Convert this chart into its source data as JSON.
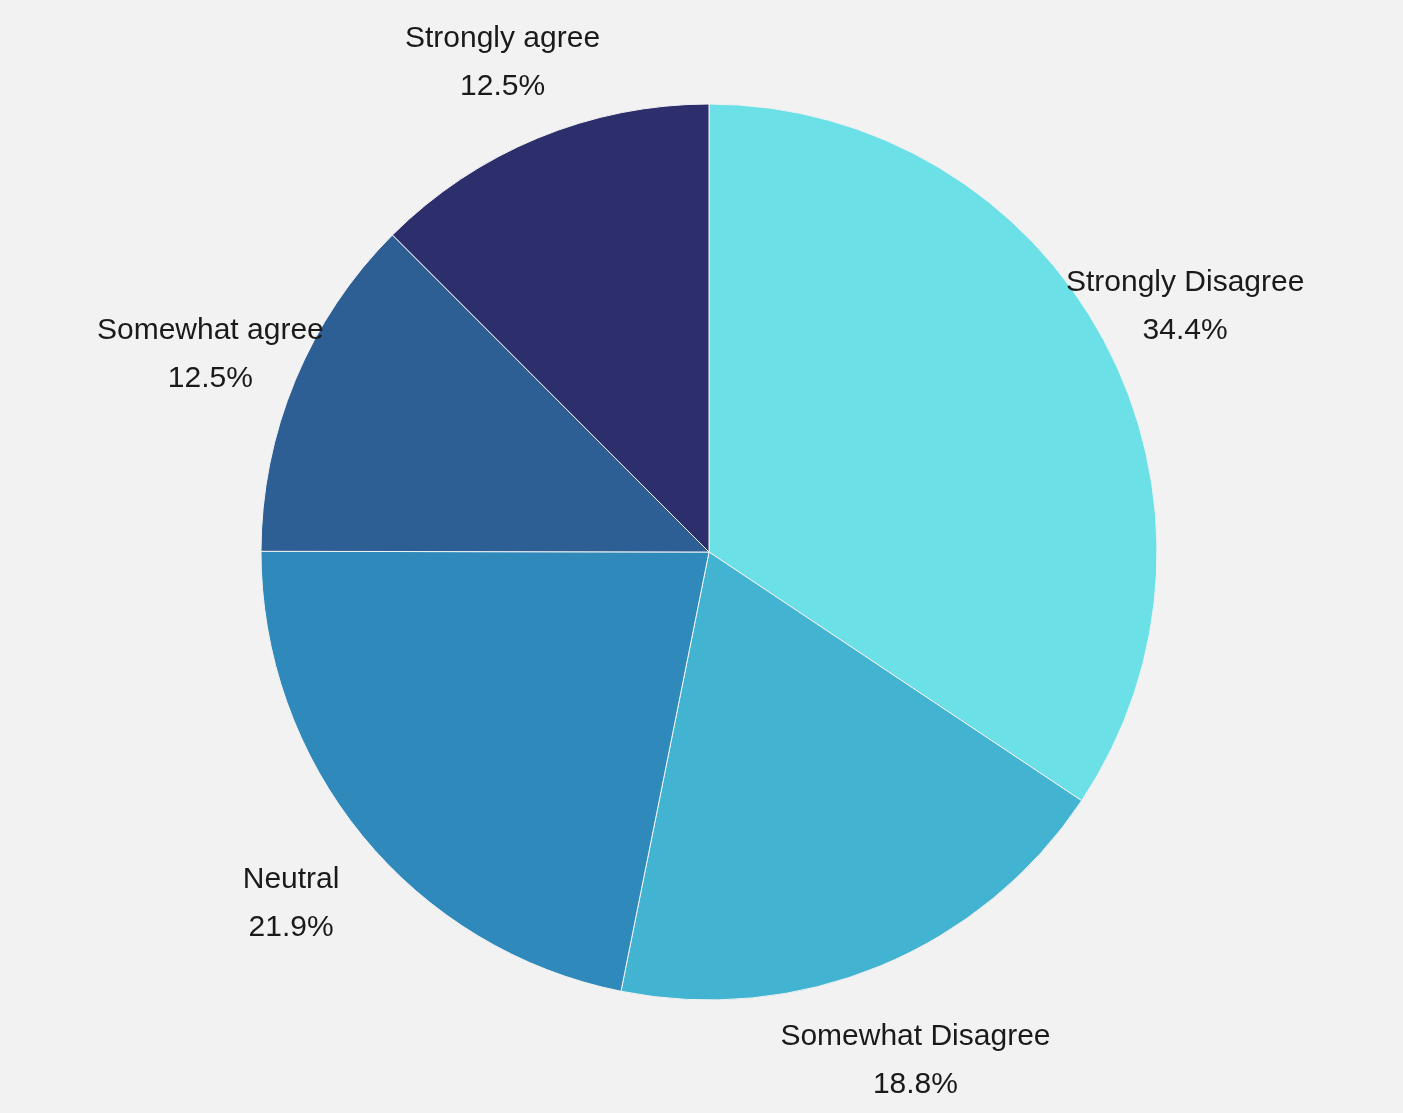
{
  "chart_data": {
    "type": "pie",
    "categories": [
      "Strongly Disagree",
      "Somewhat Disagree",
      "Neutral",
      "Somewhat agree",
      "Strongly agree"
    ],
    "values": [
      34.4,
      18.8,
      21.9,
      12.5,
      12.5
    ],
    "colors": [
      "#6be0e6",
      "#42b3d1",
      "#2f89ba",
      "#2d5e94",
      "#2d2f6d"
    ],
    "value_labels": [
      "34.4%",
      "18.8%",
      "21.9%",
      "12.5%",
      "12.5%"
    ]
  }
}
